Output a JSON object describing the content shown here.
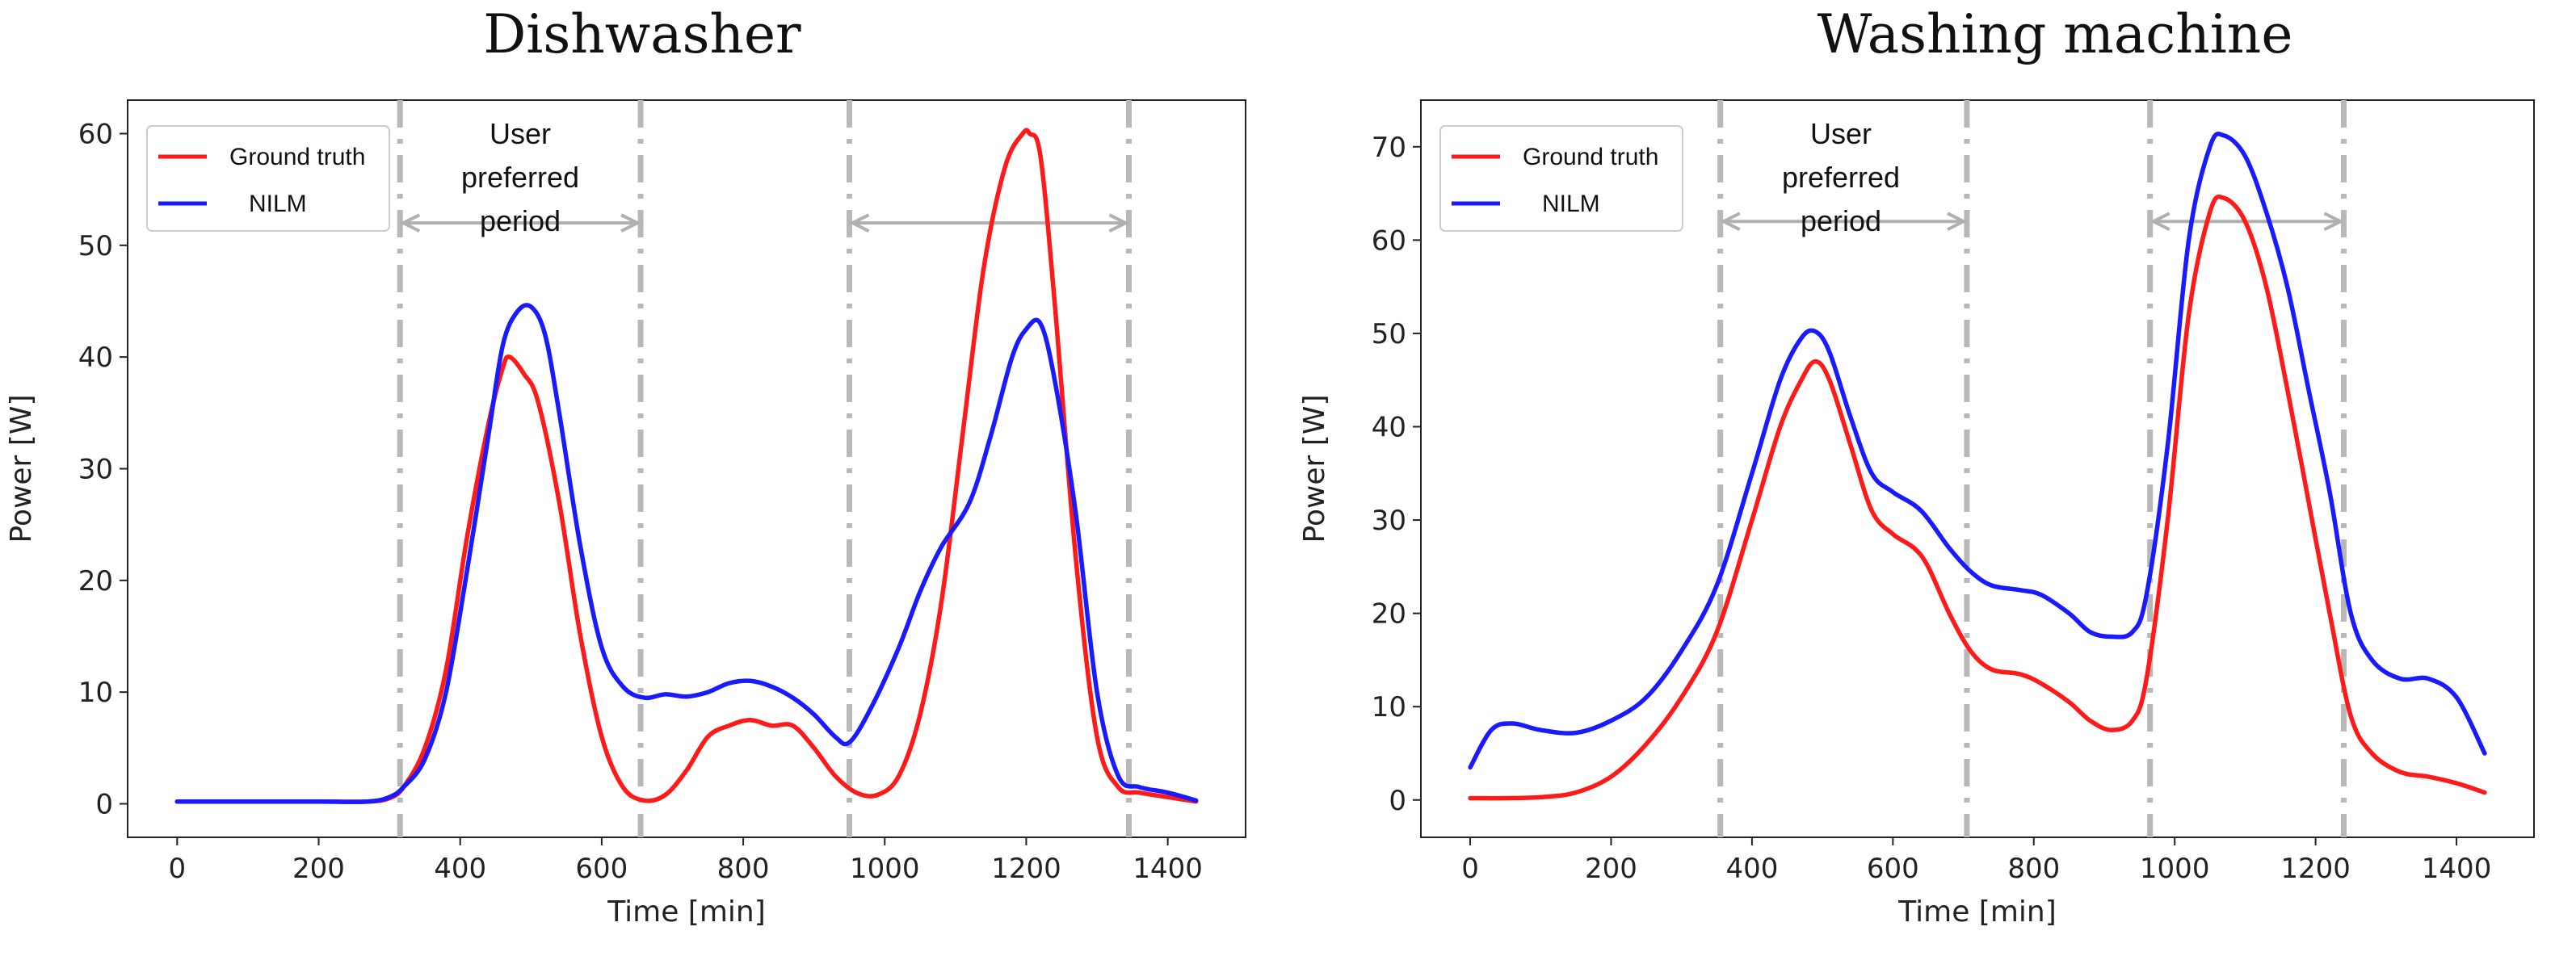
{
  "chart_data": [
    {
      "type": "line",
      "title": "Dishwasher",
      "xlabel": "Time [min]",
      "ylabel": "Power [W]",
      "xlim": [
        -70,
        1510
      ],
      "ylim": [
        -3,
        63
      ],
      "xticks": [
        0,
        200,
        400,
        600,
        800,
        1000,
        1200,
        1400
      ],
      "yticks": [
        0,
        10,
        20,
        30,
        40,
        50,
        60
      ],
      "legend": [
        "Ground truth",
        "NILM"
      ],
      "legend_position": "top-left",
      "annotation": [
        "User",
        "preferred",
        "period"
      ],
      "vlines": [
        315,
        655,
        950,
        1345
      ],
      "arrows": [
        {
          "x1": 315,
          "x2": 655,
          "y": 52
        },
        {
          "x1": 950,
          "x2": 1345,
          "y": 52
        }
      ],
      "series": [
        {
          "name": "Ground truth",
          "color": "#ff1a1a",
          "x": [
            0,
            100,
            200,
            270,
            300,
            320,
            350,
            380,
            410,
            440,
            460,
            470,
            490,
            510,
            540,
            570,
            600,
            630,
            660,
            690,
            720,
            750,
            780,
            810,
            840,
            870,
            900,
            930,
            960,
            990,
            1020,
            1050,
            1080,
            1110,
            1140,
            1170,
            1195,
            1205,
            1220,
            1240,
            1270,
            1300,
            1330,
            1360,
            1400,
            1440
          ],
          "y": [
            0.2,
            0.2,
            0.2,
            0.2,
            0.5,
            1.5,
            5,
            12,
            24,
            34,
            39,
            40,
            38.5,
            36,
            27,
            15,
            6,
            1.5,
            0.3,
            0.8,
            3,
            6,
            7,
            7.5,
            7,
            7,
            5,
            2.5,
            1,
            0.8,
            2.5,
            8,
            18,
            33,
            48,
            57,
            60,
            60,
            58,
            45,
            22,
            6,
            1.5,
            1,
            0.6,
            0.2
          ]
        },
        {
          "name": "NILM",
          "color": "#1a1aff",
          "x": [
            0,
            100,
            200,
            270,
            300,
            320,
            350,
            380,
            410,
            440,
            460,
            480,
            500,
            520,
            540,
            570,
            600,
            630,
            660,
            690,
            720,
            750,
            780,
            810,
            840,
            870,
            900,
            930,
            950,
            980,
            1020,
            1050,
            1080,
            1120,
            1150,
            1180,
            1200,
            1220,
            1240,
            1270,
            1300,
            1330,
            1360,
            1400,
            1440
          ],
          "y": [
            0.2,
            0.2,
            0.2,
            0.2,
            0.6,
            1.5,
            4,
            10,
            21,
            33,
            41,
            44,
            44.5,
            42,
            35,
            23,
            14,
            10.5,
            9.5,
            9.8,
            9.6,
            10,
            10.8,
            11,
            10.5,
            9.5,
            8,
            6,
            5.5,
            8.5,
            14,
            19,
            23,
            27,
            33,
            40,
            42.5,
            43,
            38,
            26,
            10,
            2.5,
            1.5,
            1,
            0.3
          ]
        }
      ]
    },
    {
      "type": "line",
      "title": "Washing machine",
      "xlabel": "Time [min]",
      "ylabel": "Power [W]",
      "xlim": [
        -70,
        1510
      ],
      "ylim": [
        -4,
        75
      ],
      "xticks": [
        0,
        200,
        400,
        600,
        800,
        1000,
        1200,
        1400
      ],
      "yticks": [
        0,
        10,
        20,
        30,
        40,
        50,
        60,
        70
      ],
      "legend": [
        "Ground truth",
        "NILM"
      ],
      "legend_position": "top-left",
      "annotation": [
        "User",
        "preferred",
        "period"
      ],
      "vlines": [
        355,
        705,
        965,
        1240
      ],
      "arrows": [
        {
          "x1": 355,
          "x2": 705,
          "y": 62
        },
        {
          "x1": 965,
          "x2": 1240,
          "y": 62
        }
      ],
      "series": [
        {
          "name": "Ground truth",
          "color": "#ff1a1a",
          "x": [
            0,
            50,
            100,
            150,
            200,
            250,
            300,
            350,
            400,
            440,
            470,
            490,
            510,
            540,
            570,
            600,
            630,
            650,
            680,
            710,
            740,
            780,
            810,
            850,
            880,
            910,
            940,
            960,
            990,
            1020,
            1050,
            1070,
            1100,
            1130,
            1160,
            1190,
            1220,
            1250,
            1280,
            1320,
            1360,
            1400,
            1440
          ],
          "y": [
            0.2,
            0.2,
            0.3,
            0.8,
            2.5,
            6,
            11,
            18,
            30,
            40,
            45,
            47,
            45,
            38,
            31,
            28.5,
            27,
            25,
            20,
            16,
            14,
            13.5,
            12.5,
            10.5,
            8.5,
            7.5,
            8.5,
            13,
            30,
            52,
            63,
            64.5,
            62,
            55,
            44,
            32,
            20,
            9,
            5,
            3,
            2.5,
            1.8,
            0.8
          ]
        },
        {
          "name": "NILM",
          "color": "#1a1aff",
          "x": [
            0,
            30,
            60,
            100,
            150,
            200,
            250,
            300,
            350,
            400,
            440,
            470,
            490,
            510,
            540,
            570,
            600,
            640,
            680,
            710,
            740,
            780,
            810,
            850,
            880,
            910,
            940,
            960,
            990,
            1020,
            1050,
            1070,
            1100,
            1130,
            1160,
            1190,
            1220,
            1250,
            1280,
            1320,
            1360,
            1400,
            1440
          ],
          "y": [
            3.5,
            7.5,
            8.2,
            7.5,
            7.2,
            8.5,
            11,
            16,
            23,
            35,
            45,
            49.5,
            50.2,
            48,
            41,
            35,
            33,
            31,
            27,
            24.5,
            23,
            22.5,
            22,
            20,
            18,
            17.5,
            18,
            22,
            38,
            60,
            70,
            71.2,
            69,
            63,
            55,
            44,
            33,
            20,
            15,
            13,
            13,
            11,
            5
          ]
        }
      ]
    }
  ]
}
